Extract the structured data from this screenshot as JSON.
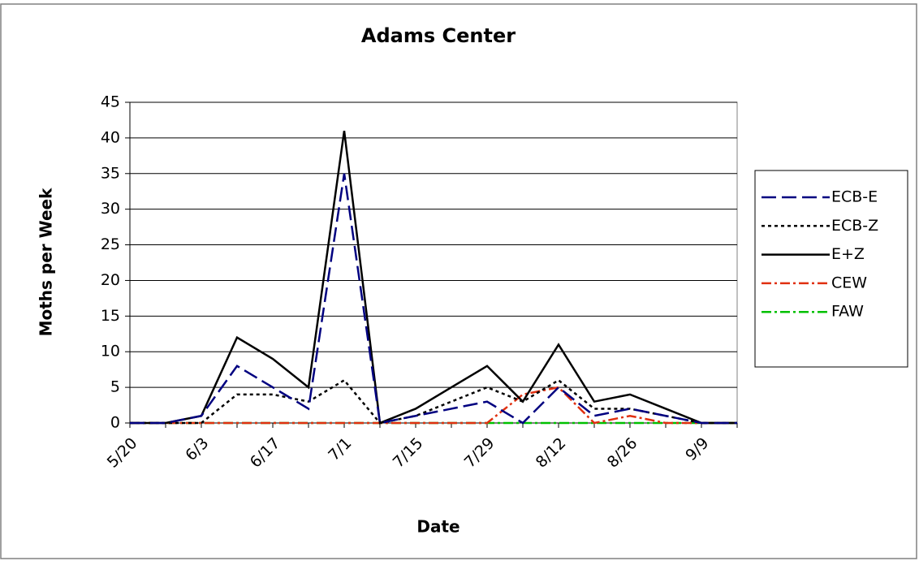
{
  "chart_data": {
    "type": "line",
    "title": "Adams Center",
    "x_label": "Date",
    "y_label": "Moths per Week",
    "categories": [
      "5/20",
      null,
      "6/3",
      null,
      "6/17",
      null,
      "7/1",
      null,
      "7/15",
      null,
      "7/29",
      null,
      "8/12",
      null,
      "8/26",
      null,
      "9/9",
      null
    ],
    "series": [
      {
        "name": "ECB-E",
        "color": "#000080",
        "dash": "18,7",
        "values": [
          0,
          0,
          1,
          8,
          5,
          2,
          35,
          0,
          1,
          2,
          3,
          0,
          5,
          1,
          2,
          1,
          0,
          0
        ]
      },
      {
        "name": "ECB-Z",
        "color": "#000000",
        "dash": "4,4",
        "values": [
          0,
          0,
          0,
          4,
          4,
          3,
          6,
          0,
          1,
          3,
          5,
          3,
          6,
          2,
          2,
          1,
          0,
          0
        ]
      },
      {
        "name": "E+Z",
        "color": "#000000",
        "dash": "none",
        "values": [
          0,
          0,
          1,
          12,
          9,
          5,
          41,
          0,
          2,
          5,
          8,
          3,
          11,
          3,
          4,
          2,
          0,
          0
        ]
      },
      {
        "name": "CEW",
        "color": "#e03010",
        "dash": "12,4,3,4",
        "values": [
          0,
          0,
          0,
          0,
          0,
          0,
          0,
          0,
          0,
          0,
          0,
          4,
          5,
          0,
          1,
          0,
          0,
          0
        ]
      },
      {
        "name": "FAW",
        "color": "#00c000",
        "dash": "12,4,3,4",
        "values": [
          0,
          0,
          0,
          0,
          0,
          0,
          0,
          0,
          0,
          0,
          0,
          0,
          0,
          0,
          0,
          0,
          0,
          0
        ]
      }
    ],
    "ylim": [
      0,
      45
    ],
    "yticks": [
      0,
      5,
      10,
      15,
      20,
      25,
      30,
      35,
      40,
      45
    ],
    "grid": true,
    "legend": "right"
  }
}
